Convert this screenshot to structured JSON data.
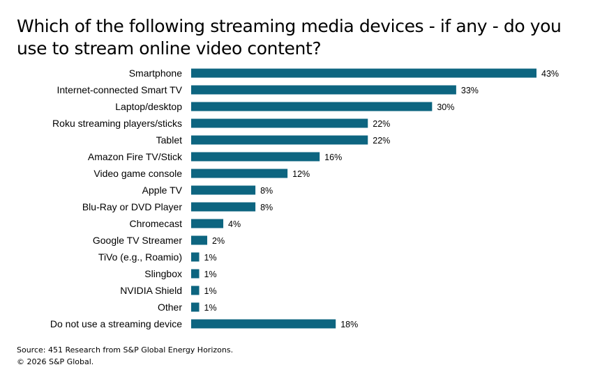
{
  "title": "Which of the following streaming media devices - if any - do you use to stream online video content?",
  "chart_data": {
    "type": "bar",
    "orientation": "horizontal",
    "title": "Which of the following streaming media devices - if any - do you use to stream online video content?",
    "categories": [
      "Smartphone",
      "Internet-connected Smart TV",
      "Laptop/desktop",
      "Roku streaming players/sticks",
      "Tablet",
      "Amazon Fire TV/Stick",
      "Video game console",
      "Apple TV",
      "Blu-Ray or DVD Player",
      "Chromecast",
      "Google TV Streamer",
      "TiVo (e.g., Roamio)",
      "Slingbox",
      "NVIDIA Shield",
      "Other",
      "Do not use a streaming device"
    ],
    "values": [
      43,
      33,
      30,
      22,
      22,
      16,
      12,
      8,
      8,
      4,
      2,
      1,
      1,
      1,
      1,
      18
    ],
    "value_labels": [
      "43%",
      "33%",
      "30%",
      "22%",
      "22%",
      "16%",
      "12%",
      "8%",
      "8%",
      "4%",
      "2%",
      "1%",
      "1%",
      "1%",
      "1%",
      "18%"
    ],
    "xlim": [
      0,
      43
    ],
    "unit": "%",
    "grid": false,
    "legend": "none",
    "bar_color": "#0d6580"
  },
  "footer": {
    "source": "Source: 451 Research from S&P Global Energy Horizons.",
    "copyright": "© 2026 S&P Global."
  }
}
